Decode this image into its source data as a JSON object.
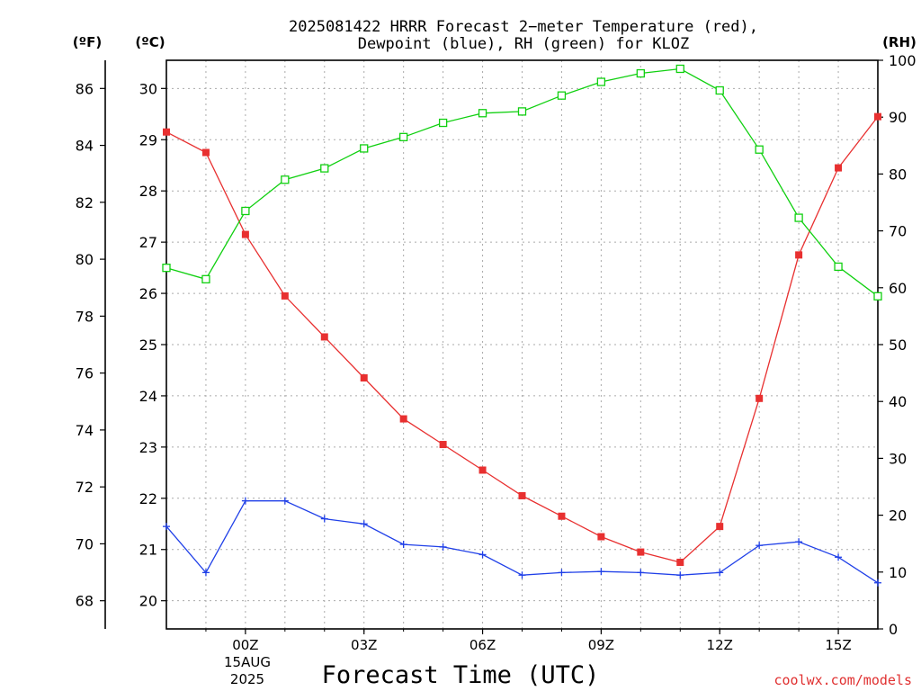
{
  "header": {
    "title_line1": "2025081422 HRRR Forecast 2−meter Temperature (red),",
    "title_line2": "Dewpoint (blue), RH (green) for KLOZ",
    "unit_f": "(ºF)",
    "unit_c": "(ºC)",
    "unit_rh": "(RH)"
  },
  "footer": {
    "xlabel": "Forecast Time (UTC)",
    "date_day": "15AUG",
    "date_year": "2025",
    "credit": "coolwx.com/models"
  },
  "chart_data": {
    "type": "line",
    "x_hours_utc": [
      -2,
      -1,
      0,
      1,
      2,
      3,
      4,
      5,
      6,
      7,
      8,
      9,
      10,
      11,
      12,
      13,
      14,
      15,
      16
    ],
    "xlim": [
      -2,
      16
    ],
    "x_ticks": [
      {
        "hour": 0,
        "label": "00Z"
      },
      {
        "hour": 3,
        "label": "03Z"
      },
      {
        "hour": 6,
        "label": "06Z"
      },
      {
        "hour": 9,
        "label": "09Z"
      },
      {
        "hour": 12,
        "label": "12Z"
      },
      {
        "hour": 15,
        "label": "15Z"
      }
    ],
    "y_left_celsius": {
      "ylim": [
        19.45,
        30.55
      ],
      "ticks": [
        20,
        21,
        22,
        23,
        24,
        25,
        26,
        27,
        28,
        29,
        30
      ]
    },
    "y_left_fahrenheit": {
      "ticks": [
        68,
        70,
        72,
        74,
        76,
        78,
        80,
        82,
        84,
        86
      ]
    },
    "y_right_rh": {
      "ylim": [
        0,
        100
      ],
      "ticks": [
        0,
        10,
        20,
        30,
        40,
        50,
        60,
        70,
        80,
        90,
        100
      ]
    },
    "grid": true,
    "series": [
      {
        "key": "temperature",
        "axis": "celsius",
        "color": "#e83030",
        "marker": "filled-square",
        "values": [
          29.15,
          28.75,
          27.15,
          25.95,
          25.15,
          24.35,
          23.55,
          23.05,
          22.55,
          22.05,
          21.65,
          21.25,
          20.95,
          20.75,
          21.45,
          23.95,
          26.75,
          28.45,
          29.45
        ]
      },
      {
        "key": "dewpoint",
        "axis": "celsius",
        "color": "#2040e8",
        "marker": "plus",
        "values": [
          21.45,
          20.55,
          21.95,
          21.95,
          21.6,
          21.5,
          21.1,
          21.05,
          20.9,
          20.5,
          20.55,
          20.57,
          20.55,
          20.5,
          20.55,
          21.08,
          21.15,
          20.85,
          20.35
        ]
      },
      {
        "key": "rh",
        "axis": "rh",
        "color": "#10d010",
        "marker": "open-square",
        "values": [
          63.5,
          61.5,
          73.5,
          79,
          81,
          84.5,
          86.5,
          89,
          90.7,
          91,
          93.8,
          96.2,
          97.7,
          98.5,
          94.7,
          84.3,
          72.3,
          63.7,
          58.5
        ]
      }
    ]
  }
}
